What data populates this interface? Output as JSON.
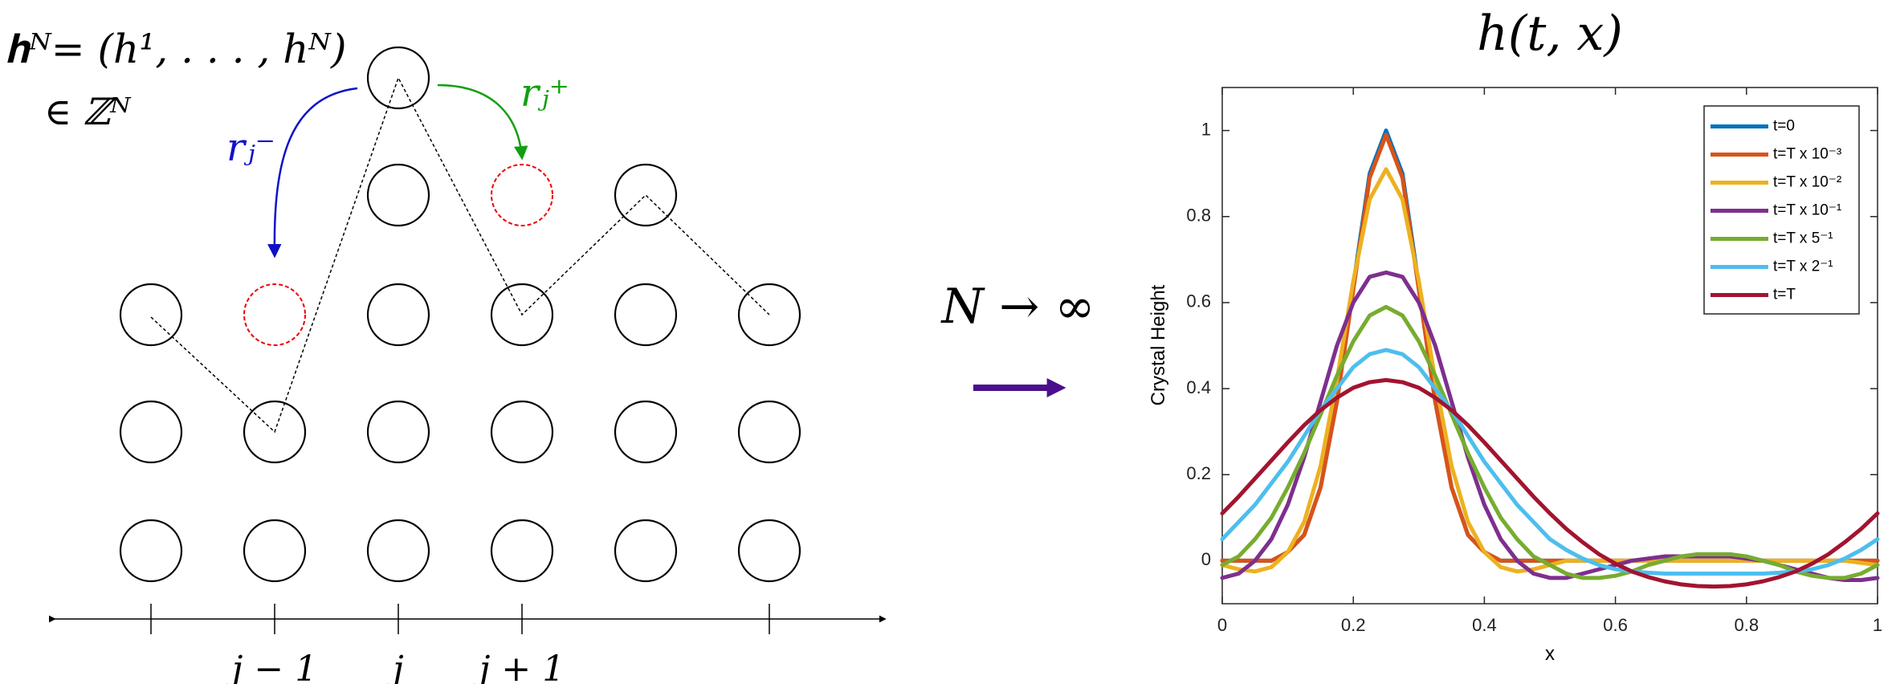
{
  "diagram": {
    "state_label": "𝐡ᴺ= (h¹, . . . , hᴺ)",
    "space_label": "∈ ℤᴺ",
    "rate_minus": "rⱼ⁻",
    "rate_plus": "rⱼ⁺",
    "axis_labels": [
      "j − 1",
      "j",
      "j + 1"
    ],
    "limit_label": "N → ∞"
  },
  "chart_data": {
    "type": "line",
    "title": "h(t, x)",
    "xlabel": "x",
    "ylabel": "Crystal Height",
    "xlim": [
      0,
      1
    ],
    "ylim": [
      -0.1,
      1.1
    ],
    "xticks": [
      0,
      0.2,
      0.4,
      0.6,
      0.8,
      1
    ],
    "yticks": [
      0,
      0.2,
      0.4,
      0.6,
      0.8,
      1
    ],
    "legend": "upper right",
    "x": [
      0,
      0.025,
      0.05,
      0.075,
      0.1,
      0.125,
      0.15,
      0.175,
      0.2,
      0.225,
      0.25,
      0.275,
      0.3,
      0.325,
      0.35,
      0.375,
      0.4,
      0.425,
      0.45,
      0.475,
      0.5,
      0.525,
      0.55,
      0.575,
      0.6,
      0.625,
      0.65,
      0.675,
      0.7,
      0.725,
      0.75,
      0.775,
      0.8,
      0.825,
      0.85,
      0.875,
      0.9,
      0.925,
      0.95,
      0.975,
      1
    ],
    "series": [
      {
        "name": "t=0",
        "color": "#0072BD",
        "values": [
          0,
          0,
          0,
          0,
          0.02,
          0.06,
          0.17,
          0.37,
          0.64,
          0.9,
          1,
          0.9,
          0.64,
          0.37,
          0.17,
          0.06,
          0.02,
          0,
          0,
          0,
          0,
          0,
          0,
          0,
          0,
          0,
          0,
          0,
          0,
          0,
          0,
          0,
          0,
          0,
          0,
          0,
          0,
          0,
          0,
          0,
          0
        ]
      },
      {
        "name": "t=T x 10⁻³",
        "color": "#D95319",
        "values": [
          0,
          0,
          0,
          0,
          0.02,
          0.06,
          0.17,
          0.37,
          0.63,
          0.89,
          0.99,
          0.89,
          0.63,
          0.37,
          0.17,
          0.06,
          0.02,
          0,
          0,
          0,
          0,
          0,
          0,
          0,
          0,
          0,
          0,
          0,
          0,
          0,
          0,
          0,
          0,
          0,
          0,
          0,
          0,
          0,
          0,
          0,
          0
        ]
      },
      {
        "name": "t=T x 10⁻²",
        "color": "#EDB120",
        "values": [
          -0.01,
          -0.02,
          -0.025,
          -0.015,
          0.02,
          0.09,
          0.22,
          0.42,
          0.65,
          0.84,
          0.91,
          0.84,
          0.65,
          0.42,
          0.22,
          0.09,
          0.02,
          -0.015,
          -0.025,
          -0.02,
          -0.01,
          0,
          0,
          0,
          0,
          0,
          0,
          0,
          0,
          0,
          0,
          0,
          0,
          0,
          0,
          0,
          0,
          0,
          0,
          -0.005,
          -0.01
        ]
      },
      {
        "name": "t=T x 10⁻¹",
        "color": "#7E2F8E",
        "values": [
          -0.04,
          -0.03,
          0,
          0.05,
          0.13,
          0.24,
          0.37,
          0.5,
          0.6,
          0.66,
          0.67,
          0.66,
          0.6,
          0.5,
          0.37,
          0.24,
          0.13,
          0.05,
          0,
          -0.03,
          -0.04,
          -0.04,
          -0.03,
          -0.02,
          -0.01,
          0,
          0.005,
          0.01,
          0.01,
          0.01,
          0.01,
          0.01,
          0.005,
          0,
          -0.01,
          -0.02,
          -0.03,
          -0.04,
          -0.045,
          -0.045,
          -0.04
        ]
      },
      {
        "name": "t=T x 5⁻¹",
        "color": "#77AC30",
        "values": [
          -0.01,
          0.01,
          0.05,
          0.1,
          0.17,
          0.25,
          0.34,
          0.43,
          0.51,
          0.57,
          0.59,
          0.57,
          0.51,
          0.43,
          0.34,
          0.25,
          0.17,
          0.1,
          0.05,
          0.01,
          -0.01,
          -0.03,
          -0.04,
          -0.04,
          -0.035,
          -0.025,
          -0.01,
          0,
          0.01,
          0.015,
          0.015,
          0.015,
          0.01,
          0,
          -0.01,
          -0.025,
          -0.035,
          -0.04,
          -0.04,
          -0.03,
          -0.01
        ]
      },
      {
        "name": "t=T x 2⁻¹",
        "color": "#4DBEEE",
        "values": [
          0.05,
          0.09,
          0.13,
          0.18,
          0.23,
          0.29,
          0.35,
          0.4,
          0.45,
          0.48,
          0.49,
          0.48,
          0.45,
          0.4,
          0.35,
          0.29,
          0.23,
          0.18,
          0.13,
          0.09,
          0.05,
          0.025,
          0.005,
          -0.01,
          -0.02,
          -0.025,
          -0.028,
          -0.03,
          -0.03,
          -0.03,
          -0.03,
          -0.03,
          -0.03,
          -0.03,
          -0.028,
          -0.025,
          -0.02,
          -0.01,
          0.005,
          0.025,
          0.05
        ]
      },
      {
        "name": "t=T",
        "color": "#A2142F",
        "values": [
          0.11,
          0.149,
          0.191,
          0.233,
          0.275,
          0.315,
          0.35,
          0.379,
          0.402,
          0.415,
          0.42,
          0.415,
          0.402,
          0.379,
          0.35,
          0.315,
          0.275,
          0.233,
          0.191,
          0.149,
          0.11,
          0.074,
          0.043,
          0.015,
          -0.007,
          -0.025,
          -0.038,
          -0.048,
          -0.055,
          -0.059,
          -0.06,
          -0.059,
          -0.055,
          -0.048,
          -0.038,
          -0.025,
          -0.007,
          0.015,
          0.043,
          0.074,
          0.11
        ]
      }
    ]
  }
}
